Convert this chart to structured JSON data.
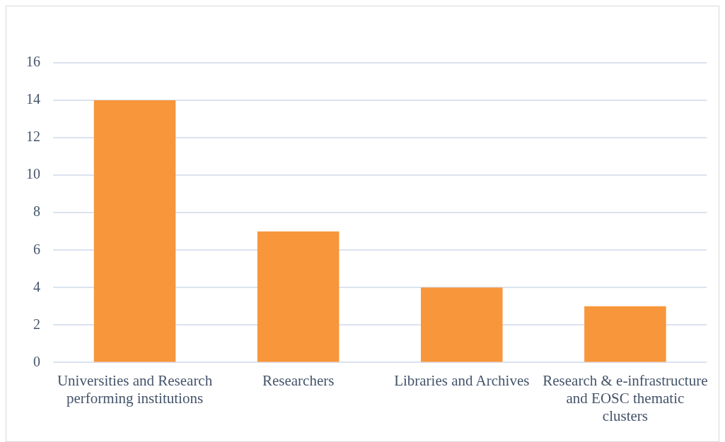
{
  "chart_data": {
    "type": "bar",
    "categories": [
      "Universities and Research performing institutions",
      "Researchers",
      "Libraries and Archives",
      "Research & e-infrastructure and EOSC thematic clusters"
    ],
    "values": [
      14,
      7,
      4,
      3
    ],
    "color": "#f7963b",
    "ylim": [
      0,
      16
    ],
    "yticks": [
      0,
      2,
      4,
      6,
      8,
      10,
      12,
      14,
      16
    ],
    "grid": "y",
    "legend": false
  }
}
